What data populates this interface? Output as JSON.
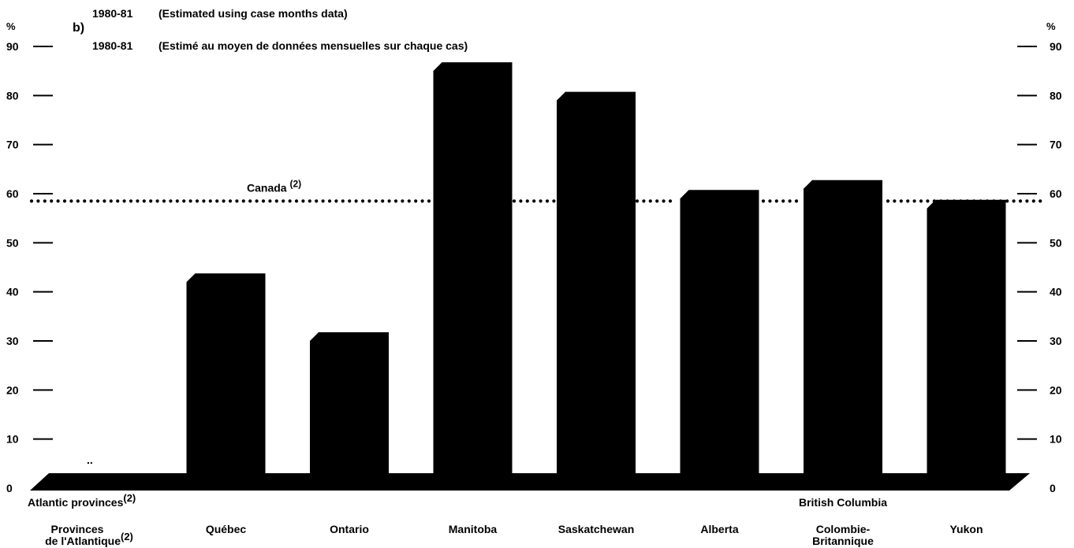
{
  "panel_label": "b)",
  "subtitle_lines": [
    {
      "year": "1980-81",
      "text": "(Estimated using case months data)"
    },
    {
      "year": "1980-81",
      "text": "(Estimé au moyen de données mensuelles sur chaque cas)"
    }
  ],
  "colors": {
    "bars": "#000000",
    "background": "#ffffff",
    "reference_line": "#000000"
  },
  "chart_data": {
    "type": "bar",
    "categories": [
      {
        "en": "Atlantic provinces",
        "en_sup": "(2)",
        "fr": "Provinces",
        "fr2": "de l'Atlantique",
        "fr2_sup": "(2)"
      },
      {
        "en": "",
        "fr": "Québec",
        "fr2": ""
      },
      {
        "en": "",
        "fr": "Ontario",
        "fr2": ""
      },
      {
        "en": "",
        "fr": "Manitoba",
        "fr2": ""
      },
      {
        "en": "",
        "fr": "Saskatchewan",
        "fr2": ""
      },
      {
        "en": "",
        "fr": "Alberta",
        "fr2": ""
      },
      {
        "en": "British  Columbia",
        "fr": "Colombie-",
        "fr2": "Britannique"
      },
      {
        "en": "",
        "fr": "Yukon",
        "fr2": ""
      }
    ],
    "values": [
      null,
      42,
      30,
      85,
      79,
      59,
      61,
      57
    ],
    "missing_marker": "..",
    "y_axis_unit": "%",
    "ylim": [
      0,
      90
    ],
    "y_ticks": [
      0,
      10,
      20,
      30,
      40,
      50,
      60,
      70,
      80,
      90
    ],
    "y_tick_labels": [
      "0",
      "10",
      "20",
      "30",
      "40",
      "50",
      "60",
      "70",
      "80",
      "90"
    ],
    "reference_line": {
      "label": "Canada",
      "label_sup": "(2)",
      "value": 58.5,
      "style": "dotted"
    },
    "axes": "both sides",
    "grid": false,
    "legend": "none"
  }
}
